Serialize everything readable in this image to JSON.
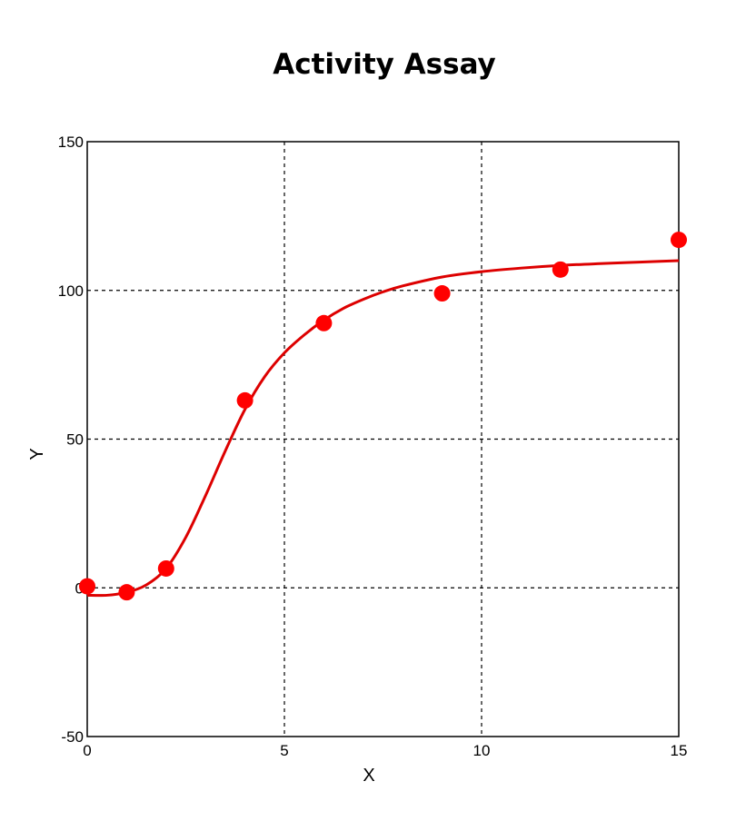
{
  "chart_data": {
    "type": "scatter",
    "title": "Activity Assay",
    "xlabel": "X",
    "ylabel": "Y",
    "xlim": [
      0,
      15
    ],
    "ylim": [
      -50,
      150
    ],
    "xticks": [
      0,
      5,
      10,
      15
    ],
    "yticks": [
      -50,
      0,
      50,
      100,
      150
    ],
    "grid": true,
    "colors": {
      "points": "#ff0000",
      "fit": "#dd0000",
      "grid": "#000000"
    },
    "series": [
      {
        "kind": "points",
        "x": [
          0,
          1,
          2,
          4,
          6,
          9,
          12,
          15
        ],
        "y": [
          0.5,
          -1.5,
          6.5,
          63,
          89,
          99,
          107,
          117
        ]
      },
      {
        "kind": "fit-curve",
        "x": [
          0,
          0.5,
          1,
          1.5,
          2,
          2.5,
          3,
          3.5,
          4,
          4.5,
          5,
          5.5,
          6,
          6.5,
          7,
          7.5,
          8,
          9,
          10,
          11,
          12,
          13,
          14,
          15
        ],
        "y": [
          -2.5,
          -2.5,
          -1.5,
          1,
          6.5,
          17,
          31,
          46,
          60,
          71,
          79,
          85,
          90,
          94,
          97,
          99.5,
          101.5,
          104.5,
          106.3,
          107.5,
          108.4,
          109,
          109.5,
          110
        ]
      }
    ]
  }
}
